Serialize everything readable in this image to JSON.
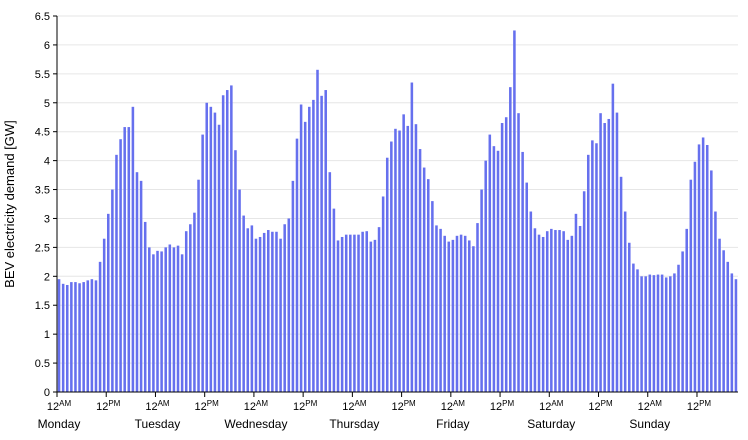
{
  "chart_data": {
    "type": "bar",
    "title": "",
    "xlabel": "",
    "ylabel": "BEV electricity demand [GW]",
    "ylim": [
      0,
      6.5
    ],
    "yticks": [
      "0",
      "0.5",
      "1",
      "1.5",
      "2",
      "2.5",
      "3",
      "3.5",
      "4",
      "4.5",
      "5",
      "5.5",
      "6",
      "6.5"
    ],
    "grid": "horizontal",
    "bar_color": "#6670ee",
    "hour_ticks": [
      {
        "hour": 0,
        "main": "12",
        "sup": "AM"
      },
      {
        "hour": 12,
        "main": "12",
        "sup": "PM"
      },
      {
        "hour": 24,
        "main": "12",
        "sup": "AM"
      },
      {
        "hour": 36,
        "main": "12",
        "sup": "PM"
      },
      {
        "hour": 48,
        "main": "12",
        "sup": "AM"
      },
      {
        "hour": 60,
        "main": "12",
        "sup": "PM"
      },
      {
        "hour": 72,
        "main": "12",
        "sup": "AM"
      },
      {
        "hour": 84,
        "main": "12",
        "sup": "PM"
      },
      {
        "hour": 96,
        "main": "12",
        "sup": "AM"
      },
      {
        "hour": 108,
        "main": "12",
        "sup": "PM"
      },
      {
        "hour": 120,
        "main": "12",
        "sup": "AM"
      },
      {
        "hour": 132,
        "main": "12",
        "sup": "PM"
      },
      {
        "hour": 144,
        "main": "12",
        "sup": "AM"
      },
      {
        "hour": 156,
        "main": "12",
        "sup": "PM"
      }
    ],
    "days": [
      "Monday",
      "Tuesday",
      "Wednesday",
      "Thursday",
      "Friday",
      "Saturday",
      "Sunday"
    ],
    "values": [
      1.95,
      1.87,
      1.85,
      1.9,
      1.9,
      1.88,
      1.9,
      1.93,
      1.95,
      1.93,
      2.25,
      2.65,
      3.08,
      3.5,
      4.1,
      4.37,
      4.58,
      4.58,
      4.93,
      3.8,
      3.65,
      2.94,
      2.5,
      2.38,
      2.44,
      2.43,
      2.5,
      2.55,
      2.5,
      2.53,
      2.38,
      2.78,
      2.9,
      3.1,
      3.67,
      4.45,
      5.0,
      4.93,
      4.83,
      4.62,
      5.13,
      5.22,
      5.3,
      4.18,
      3.5,
      3.05,
      2.83,
      2.88,
      2.65,
      2.68,
      2.75,
      2.8,
      2.77,
      2.77,
      2.65,
      2.9,
      3.0,
      3.65,
      4.38,
      4.97,
      4.67,
      4.93,
      5.05,
      5.57,
      5.12,
      5.22,
      3.8,
      3.17,
      2.62,
      2.68,
      2.72,
      2.72,
      2.72,
      2.72,
      2.77,
      2.78,
      2.6,
      2.63,
      2.85,
      3.38,
      4.05,
      4.33,
      4.55,
      4.52,
      4.8,
      4.6,
      5.35,
      4.63,
      4.2,
      3.88,
      3.68,
      3.3,
      2.88,
      2.82,
      2.7,
      2.6,
      2.63,
      2.7,
      2.72,
      2.7,
      2.62,
      2.52,
      2.92,
      3.5,
      4.0,
      4.45,
      4.25,
      4.17,
      4.65,
      4.75,
      5.27,
      6.25,
      4.82,
      4.15,
      3.62,
      3.12,
      2.83,
      2.72,
      2.68,
      2.78,
      2.82,
      2.8,
      2.8,
      2.78,
      2.63,
      2.7,
      3.08,
      2.87,
      3.47,
      4.1,
      4.35,
      4.3,
      4.82,
      4.65,
      4.72,
      5.33,
      4.83,
      3.72,
      3.12,
      2.58,
      2.22,
      2.12,
      2.0,
      2.0,
      2.03,
      2.02,
      2.03,
      2.03,
      1.98,
      2.0,
      2.05,
      2.2,
      2.43,
      2.82,
      3.67,
      3.98,
      4.28,
      4.4,
      4.27,
      3.83,
      3.12,
      2.65,
      2.45,
      2.25,
      2.05,
      1.95
    ]
  }
}
